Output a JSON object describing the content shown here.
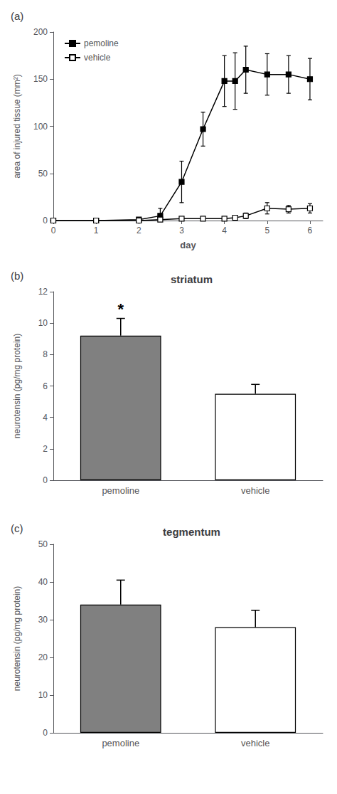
{
  "chart_data": [
    {
      "type": "line",
      "panel_label": "(a)",
      "xlabel": "day",
      "ylabel": "area of injured tissue (mm²)",
      "x": [
        0,
        1,
        2,
        2.5,
        3,
        3.5,
        4,
        4.25,
        4.5,
        5,
        5.5,
        6
      ],
      "xlim": [
        0,
        6.3
      ],
      "xticks": [
        0,
        1,
        2,
        3,
        4,
        5,
        6
      ],
      "ylim": [
        0,
        200
      ],
      "yticks": [
        0,
        50,
        100,
        150,
        200
      ],
      "grid": false,
      "legend": "upper left",
      "series": [
        {
          "name": "pemoline",
          "color": "#000000",
          "marker": "square",
          "values": [
            0,
            0,
            1,
            5,
            41,
            97,
            148,
            148,
            160,
            155,
            155,
            150
          ],
          "errors": [
            0,
            0,
            1,
            8,
            22,
            18,
            27,
            30,
            25,
            22,
            20,
            22
          ]
        },
        {
          "name": "vehicle",
          "color": "#000000",
          "marker": "open-square",
          "values": [
            0,
            0,
            0,
            1,
            2,
            2,
            2,
            3,
            5,
            13,
            12,
            13
          ],
          "errors": [
            0,
            0,
            0,
            1,
            1,
            1,
            1,
            2,
            3,
            6,
            4,
            5
          ]
        }
      ]
    },
    {
      "type": "bar",
      "panel_label": "(b)",
      "title": "striatum",
      "ylabel": "neurotensin (pg/mg protein)",
      "categories": [
        "pemoline",
        "vehicle"
      ],
      "values": [
        9.2,
        5.5
      ],
      "errors_upper": [
        1.1,
        0.6
      ],
      "colors": [
        "#808080",
        "#ffffff"
      ],
      "ylim": [
        0,
        12
      ],
      "yticks": [
        0,
        2,
        4,
        6,
        8,
        10,
        12
      ],
      "grid": false,
      "annotations": [
        {
          "text": "*",
          "category": "pemoline"
        }
      ]
    },
    {
      "type": "bar",
      "panel_label": "(c)",
      "title": "tegmentum",
      "ylabel": "neurotensin (pg/mg protein)",
      "categories": [
        "pemoline",
        "vehicle"
      ],
      "values": [
        34,
        28
      ],
      "errors_upper": [
        6.5,
        4.5
      ],
      "colors": [
        "#808080",
        "#ffffff"
      ],
      "ylim": [
        0,
        50
      ],
      "yticks": [
        0,
        10,
        20,
        30,
        40,
        50
      ],
      "grid": false
    }
  ]
}
